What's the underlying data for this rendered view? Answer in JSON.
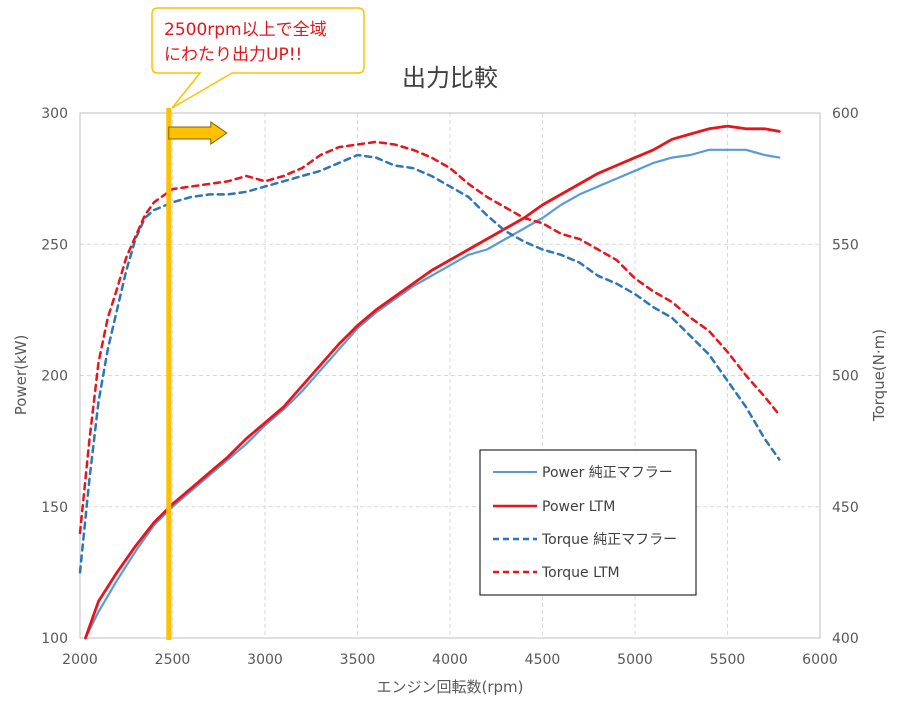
{
  "chart_data": {
    "type": "line",
    "title": "出力比較",
    "xlabel": "エンジン回転数(rpm)",
    "ylabel_left": "Power(kW)",
    "ylabel_right": "Torque(N·m)",
    "xlim": [
      2000,
      6000
    ],
    "ylim_left": [
      100,
      300
    ],
    "ylim_right": [
      400,
      600
    ],
    "x_ticks": [
      2000,
      2500,
      3000,
      3500,
      4000,
      4500,
      5000,
      5500,
      6000
    ],
    "y_ticks_left": [
      100,
      150,
      200,
      250,
      300
    ],
    "y_ticks_right": [
      400,
      450,
      500,
      550,
      600
    ],
    "grid": true,
    "legend_position": "bottom-right",
    "series": [
      {
        "name": "Power 純正マフラー",
        "axis": "left",
        "style": "solid",
        "color": "#5b9bd5",
        "x": [
          2030,
          2100,
          2200,
          2300,
          2400,
          2500,
          2600,
          2700,
          2800,
          2900,
          3000,
          3100,
          3200,
          3300,
          3400,
          3500,
          3600,
          3700,
          3800,
          3900,
          4000,
          4100,
          4200,
          4300,
          4400,
          4500,
          4600,
          4700,
          4800,
          4900,
          5000,
          5100,
          5200,
          5300,
          5400,
          5500,
          5600,
          5700,
          5780
        ],
        "y": [
          100,
          110,
          122,
          133,
          143,
          150,
          156,
          162,
          168,
          174,
          181,
          187,
          194,
          202,
          210,
          218,
          224,
          229,
          234,
          238,
          242,
          246,
          248,
          252,
          256,
          260,
          265,
          269,
          272,
          275,
          278,
          281,
          283,
          284,
          286,
          286,
          286,
          284,
          283
        ]
      },
      {
        "name": "Power LTM",
        "axis": "left",
        "style": "solid",
        "color": "#e8141b",
        "x": [
          2030,
          2100,
          2200,
          2300,
          2400,
          2500,
          2600,
          2700,
          2800,
          2900,
          3000,
          3100,
          3200,
          3300,
          3400,
          3500,
          3600,
          3700,
          3800,
          3900,
          4000,
          4100,
          4200,
          4300,
          4400,
          4500,
          4600,
          4700,
          4800,
          4900,
          5000,
          5100,
          5200,
          5300,
          5400,
          5500,
          5600,
          5700,
          5780
        ],
        "y": [
          100,
          114,
          125,
          135,
          144,
          151,
          157,
          163,
          169,
          176,
          182,
          188,
          196,
          204,
          212,
          219,
          225,
          230,
          235,
          240,
          244,
          248,
          252,
          256,
          260,
          265,
          269,
          273,
          277,
          280,
          283,
          286,
          290,
          292,
          294,
          295,
          294,
          294,
          293
        ]
      },
      {
        "name": "Torque 純正マフラー",
        "axis": "right",
        "style": "dashed",
        "color": "#2e75b6",
        "x": [
          2000,
          2050,
          2100,
          2150,
          2200,
          2250,
          2300,
          2350,
          2400,
          2500,
          2600,
          2700,
          2800,
          2900,
          3000,
          3100,
          3200,
          3300,
          3400,
          3500,
          3600,
          3700,
          3800,
          3900,
          4000,
          4100,
          4200,
          4300,
          4400,
          4500,
          4600,
          4700,
          4800,
          4900,
          5000,
          5100,
          5200,
          5300,
          5400,
          5500,
          5600,
          5700,
          5780
        ],
        "y": [
          425,
          460,
          490,
          510,
          525,
          540,
          552,
          560,
          563,
          566,
          568,
          569,
          569,
          570,
          572,
          574,
          576,
          578,
          581,
          584,
          583,
          580,
          579,
          576,
          572,
          568,
          561,
          555,
          551,
          548,
          546,
          543,
          538,
          535,
          531,
          526,
          522,
          515,
          508,
          498,
          488,
          476,
          468
        ]
      },
      {
        "name": "Torque LTM",
        "axis": "right",
        "style": "dashed",
        "color": "#e8141b",
        "x": [
          2000,
          2050,
          2100,
          2150,
          2200,
          2250,
          2300,
          2350,
          2400,
          2500,
          2600,
          2700,
          2800,
          2900,
          3000,
          3100,
          3200,
          3300,
          3400,
          3500,
          3600,
          3700,
          3800,
          3900,
          4000,
          4100,
          4200,
          4300,
          4400,
          4500,
          4600,
          4700,
          4800,
          4900,
          5000,
          5100,
          5200,
          5300,
          5400,
          5500,
          5600,
          5700,
          5780
        ],
        "y": [
          440,
          475,
          505,
          522,
          533,
          545,
          553,
          561,
          566,
          571,
          572,
          573,
          574,
          576,
          574,
          576,
          579,
          584,
          587,
          588,
          589,
          588,
          586,
          583,
          579,
          573,
          568,
          564,
          560,
          558,
          554,
          552,
          548,
          544,
          537,
          532,
          528,
          522,
          517,
          509,
          500,
          492,
          485
        ]
      }
    ],
    "annotation": {
      "text_lines": [
        "2500rpm以上で全域",
        "にわたり出力UP!!"
      ],
      "marker_x": 2480,
      "marker_color": "#ffc000",
      "arrow_color": "#ffc000"
    }
  }
}
